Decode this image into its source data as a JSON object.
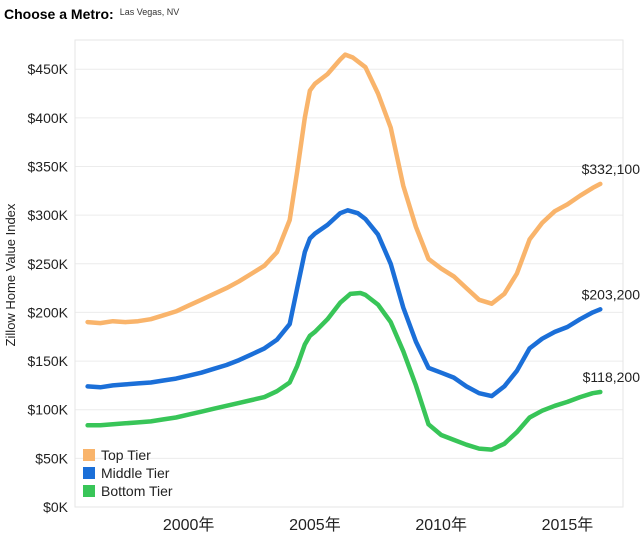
{
  "header": {
    "label": "Choose a Metro:",
    "selected_metro": "Las Vegas, NV"
  },
  "chart_data": {
    "type": "line",
    "title": "",
    "xlabel": "",
    "ylabel": "Zillow Home Value Index",
    "xlim": [
      1995.5,
      2017.2
    ],
    "ylim": [
      0,
      480000
    ],
    "x_ticks": [
      {
        "value": 2000,
        "label": "2000年"
      },
      {
        "value": 2005,
        "label": "2005年"
      },
      {
        "value": 2010,
        "label": "2010年"
      },
      {
        "value": 2015,
        "label": "2015年"
      }
    ],
    "y_ticks": [
      {
        "value": 0,
        "label": "$0K"
      },
      {
        "value": 50000,
        "label": "$50K"
      },
      {
        "value": 100000,
        "label": "$100K"
      },
      {
        "value": 150000,
        "label": "$150K"
      },
      {
        "value": 200000,
        "label": "$200K"
      },
      {
        "value": 250000,
        "label": "$250K"
      },
      {
        "value": 300000,
        "label": "$300K"
      },
      {
        "value": 350000,
        "label": "$350K"
      },
      {
        "value": 400000,
        "label": "$400K"
      },
      {
        "value": 450000,
        "label": "$450K"
      }
    ],
    "legend_position": "bottom-left",
    "series": [
      {
        "name": "Top Tier",
        "color": "#F9B46B",
        "end_label": "$332,100",
        "points": [
          [
            1996.0,
            190000
          ],
          [
            1996.5,
            189000
          ],
          [
            1997.0,
            191000
          ],
          [
            1997.5,
            190000
          ],
          [
            1998.0,
            191000
          ],
          [
            1998.5,
            193000
          ],
          [
            1999.0,
            197000
          ],
          [
            1999.5,
            201000
          ],
          [
            2000.0,
            207000
          ],
          [
            2000.5,
            213000
          ],
          [
            2001.0,
            219000
          ],
          [
            2001.5,
            225000
          ],
          [
            2002.0,
            232000
          ],
          [
            2002.5,
            240000
          ],
          [
            2003.0,
            248000
          ],
          [
            2003.5,
            262000
          ],
          [
            2004.0,
            295000
          ],
          [
            2004.3,
            345000
          ],
          [
            2004.6,
            400000
          ],
          [
            2004.8,
            428000
          ],
          [
            2005.0,
            435000
          ],
          [
            2005.5,
            445000
          ],
          [
            2006.0,
            460000
          ],
          [
            2006.2,
            465000
          ],
          [
            2006.5,
            462000
          ],
          [
            2007.0,
            452000
          ],
          [
            2007.5,
            425000
          ],
          [
            2008.0,
            390000
          ],
          [
            2008.5,
            330000
          ],
          [
            2009.0,
            288000
          ],
          [
            2009.5,
            255000
          ],
          [
            2010.0,
            245000
          ],
          [
            2010.5,
            237000
          ],
          [
            2011.0,
            225000
          ],
          [
            2011.5,
            213000
          ],
          [
            2012.0,
            209000
          ],
          [
            2012.5,
            219000
          ],
          [
            2013.0,
            240000
          ],
          [
            2013.5,
            275000
          ],
          [
            2014.0,
            292000
          ],
          [
            2014.5,
            304000
          ],
          [
            2015.0,
            311000
          ],
          [
            2015.5,
            320000
          ],
          [
            2016.0,
            328000
          ],
          [
            2016.3,
            332100
          ]
        ]
      },
      {
        "name": "Middle Tier",
        "color": "#1B6FD8",
        "end_label": "$203,200",
        "points": [
          [
            1996.0,
            124000
          ],
          [
            1996.5,
            123000
          ],
          [
            1997.0,
            125000
          ],
          [
            1997.5,
            126000
          ],
          [
            1998.0,
            127000
          ],
          [
            1998.5,
            128000
          ],
          [
            1999.0,
            130000
          ],
          [
            1999.5,
            132000
          ],
          [
            2000.0,
            135000
          ],
          [
            2000.5,
            138000
          ],
          [
            2001.0,
            142000
          ],
          [
            2001.5,
            146000
          ],
          [
            2002.0,
            151000
          ],
          [
            2002.5,
            157000
          ],
          [
            2003.0,
            163000
          ],
          [
            2003.5,
            172000
          ],
          [
            2004.0,
            188000
          ],
          [
            2004.3,
            225000
          ],
          [
            2004.6,
            262000
          ],
          [
            2004.8,
            276000
          ],
          [
            2005.0,
            281000
          ],
          [
            2005.5,
            290000
          ],
          [
            2006.0,
            302000
          ],
          [
            2006.3,
            305000
          ],
          [
            2006.7,
            302000
          ],
          [
            2007.0,
            296000
          ],
          [
            2007.5,
            280000
          ],
          [
            2008.0,
            250000
          ],
          [
            2008.5,
            205000
          ],
          [
            2009.0,
            170000
          ],
          [
            2009.5,
            143000
          ],
          [
            2010.0,
            138000
          ],
          [
            2010.5,
            133000
          ],
          [
            2011.0,
            124000
          ],
          [
            2011.5,
            117000
          ],
          [
            2012.0,
            114000
          ],
          [
            2012.5,
            124000
          ],
          [
            2013.0,
            140000
          ],
          [
            2013.5,
            163000
          ],
          [
            2014.0,
            173000
          ],
          [
            2014.5,
            180000
          ],
          [
            2015.0,
            185000
          ],
          [
            2015.5,
            193000
          ],
          [
            2016.0,
            200000
          ],
          [
            2016.3,
            203200
          ]
        ]
      },
      {
        "name": "Bottom Tier",
        "color": "#38C558",
        "end_label": "$118,200",
        "points": [
          [
            1996.0,
            84000
          ],
          [
            1996.5,
            84000
          ],
          [
            1997.0,
            85000
          ],
          [
            1997.5,
            86000
          ],
          [
            1998.0,
            87000
          ],
          [
            1998.5,
            88000
          ],
          [
            1999.0,
            90000
          ],
          [
            1999.5,
            92000
          ],
          [
            2000.0,
            95000
          ],
          [
            2000.5,
            98000
          ],
          [
            2001.0,
            101000
          ],
          [
            2001.5,
            104000
          ],
          [
            2002.0,
            107000
          ],
          [
            2002.5,
            110000
          ],
          [
            2003.0,
            113000
          ],
          [
            2003.5,
            119000
          ],
          [
            2004.0,
            128000
          ],
          [
            2004.3,
            145000
          ],
          [
            2004.6,
            167000
          ],
          [
            2004.8,
            176000
          ],
          [
            2005.0,
            180000
          ],
          [
            2005.5,
            193000
          ],
          [
            2006.0,
            210000
          ],
          [
            2006.4,
            219000
          ],
          [
            2006.8,
            220000
          ],
          [
            2007.0,
            218000
          ],
          [
            2007.5,
            208000
          ],
          [
            2008.0,
            190000
          ],
          [
            2008.5,
            160000
          ],
          [
            2009.0,
            125000
          ],
          [
            2009.5,
            85000
          ],
          [
            2010.0,
            74000
          ],
          [
            2010.5,
            69000
          ],
          [
            2011.0,
            64000
          ],
          [
            2011.5,
            60000
          ],
          [
            2012.0,
            59000
          ],
          [
            2012.5,
            65000
          ],
          [
            2013.0,
            77000
          ],
          [
            2013.5,
            92000
          ],
          [
            2014.0,
            99000
          ],
          [
            2014.5,
            104000
          ],
          [
            2015.0,
            108000
          ],
          [
            2015.5,
            113000
          ],
          [
            2016.0,
            117000
          ],
          [
            2016.3,
            118200
          ]
        ]
      }
    ]
  }
}
